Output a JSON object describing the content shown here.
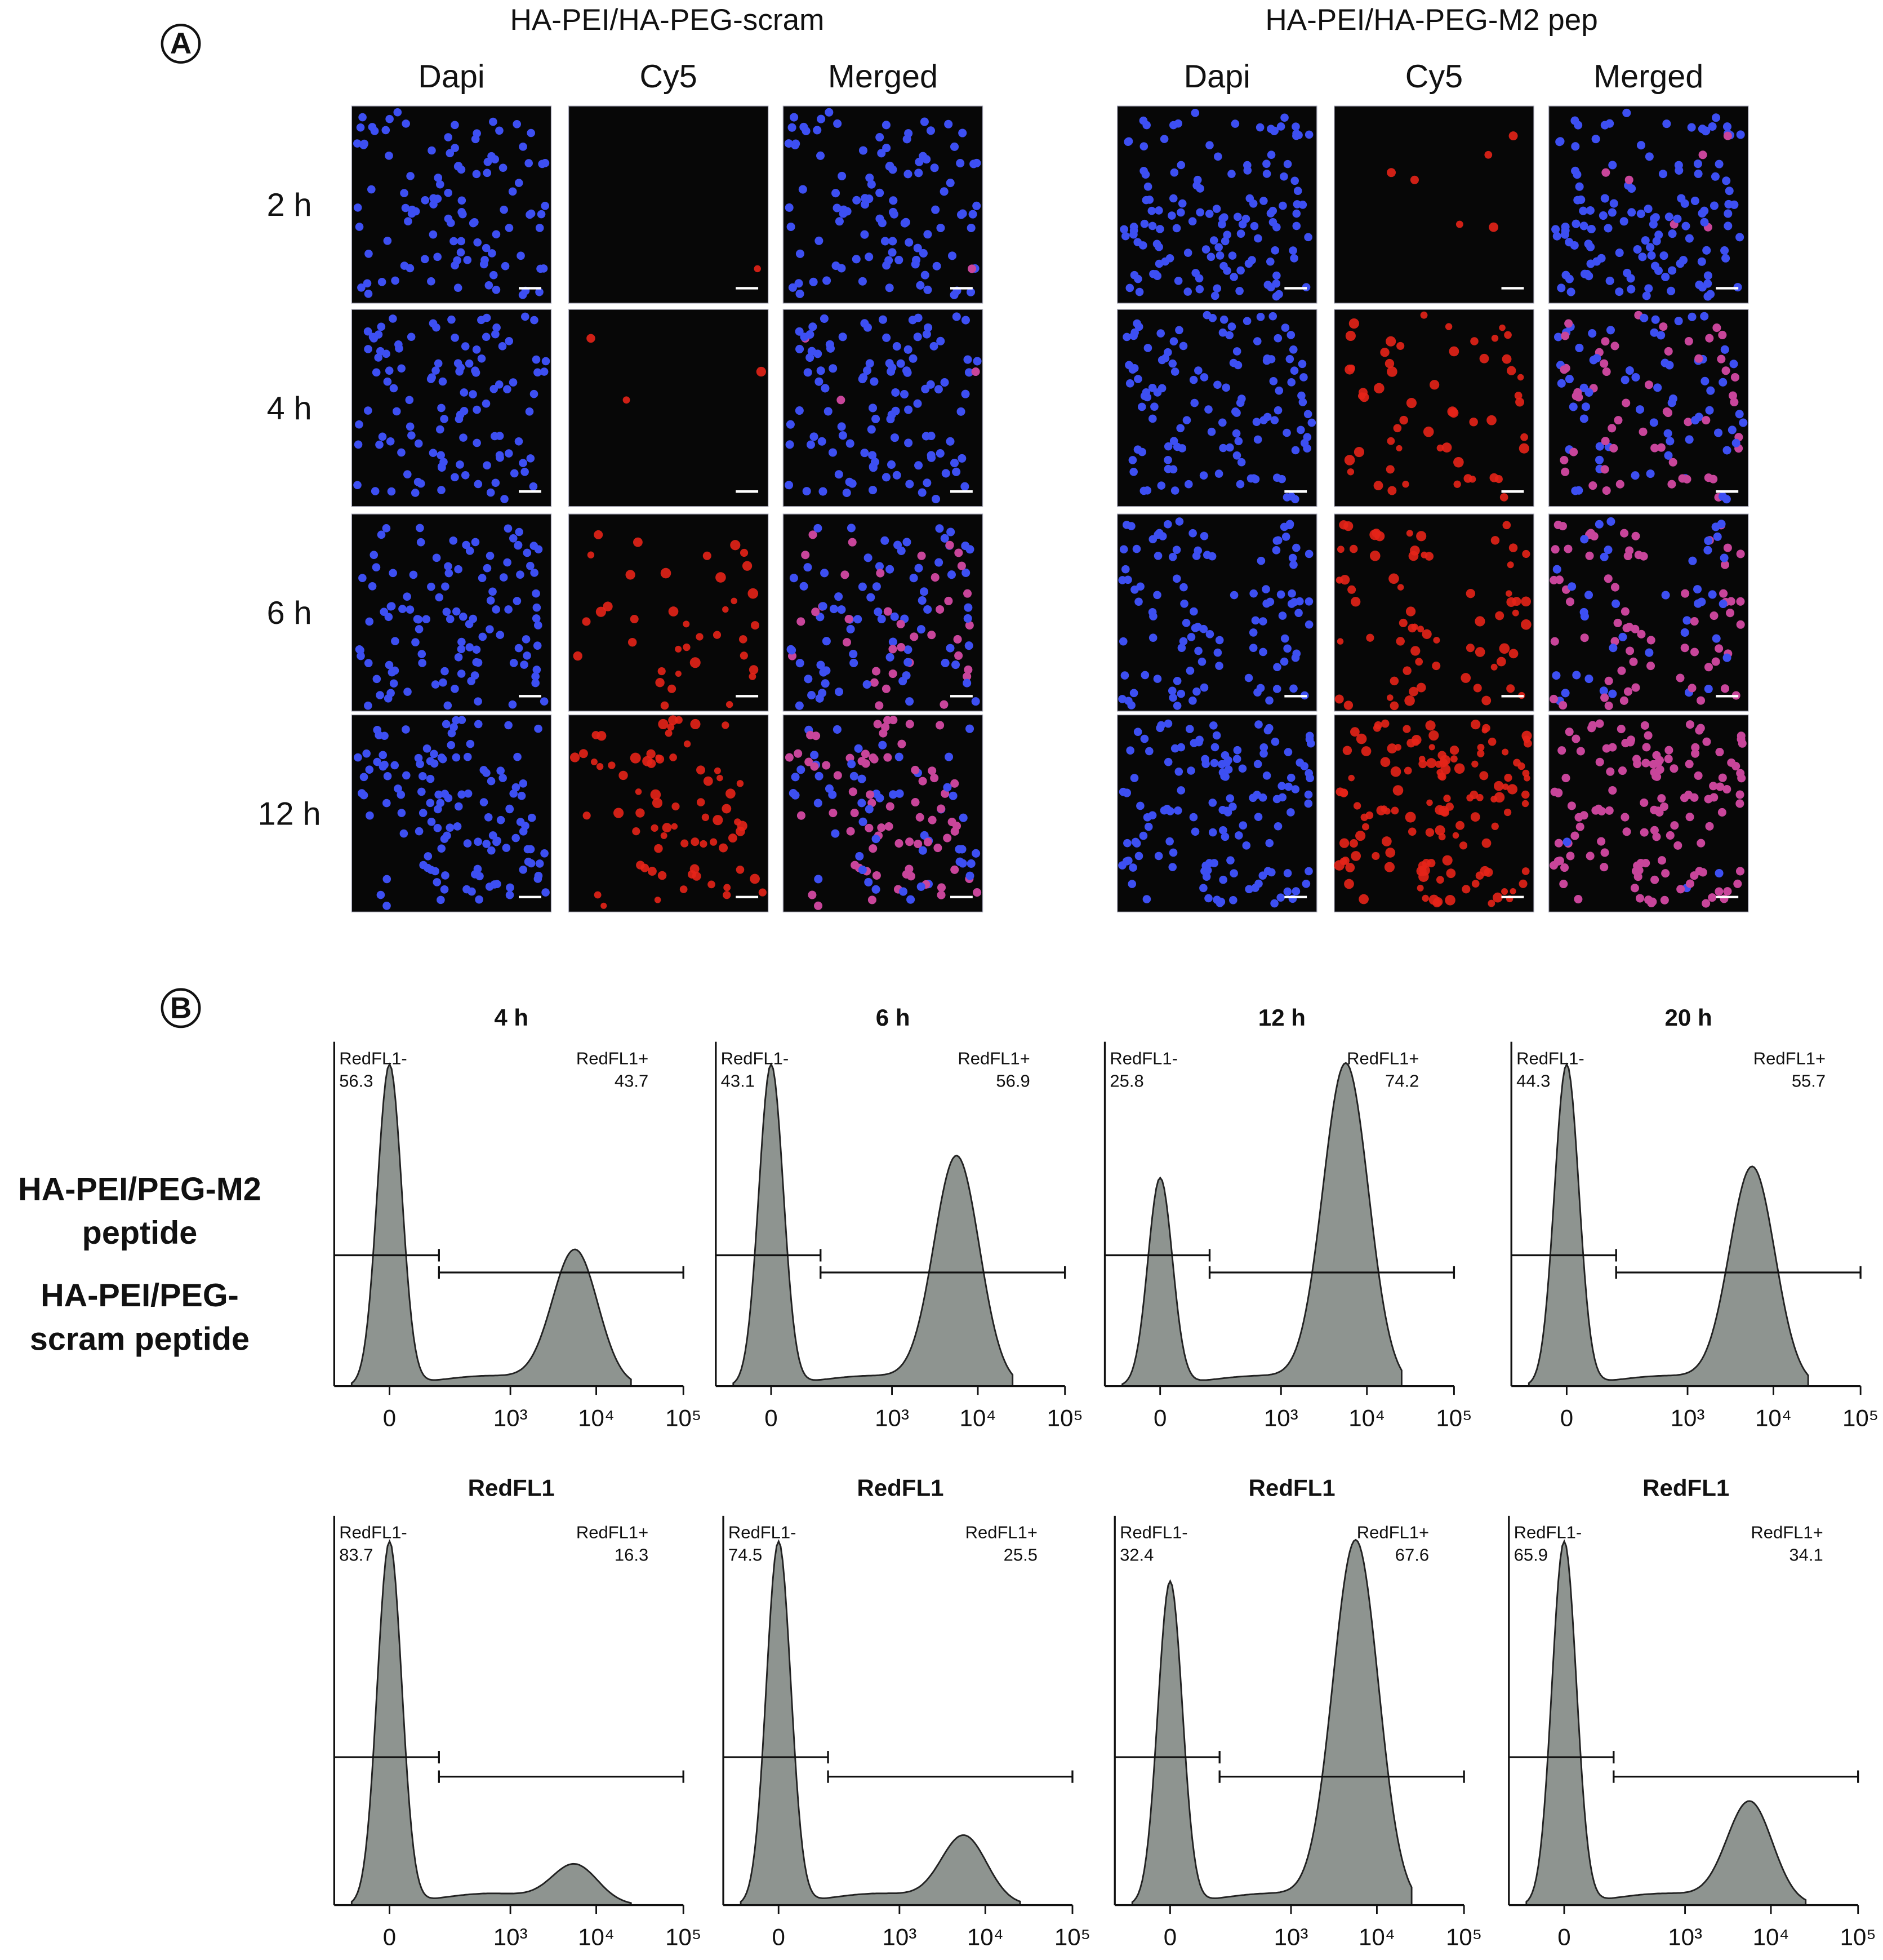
{
  "panel_a": {
    "label": "A",
    "groups": [
      {
        "title": "HA-PEI/HA-PEG-scram",
        "channels": [
          "Dapi",
          "Cy5",
          "Merged"
        ]
      },
      {
        "title": "HA-PEI/HA-PEG-M2 pep",
        "channels": [
          "Dapi",
          "Cy5",
          "Merged"
        ]
      }
    ],
    "timepoints": [
      "2 h",
      "4 h",
      "6 h",
      "12 h"
    ]
  },
  "panel_b": {
    "label": "B",
    "xlim": [
      -33,
      100000
    ],
    "xticks": [
      0,
      {
        "value": 1000,
        "label": "10³"
      },
      {
        "value": 10000,
        "label": "10⁴"
      },
      {
        "value": 100000,
        "label": "10⁵"
      }
    ],
    "fill_color": "#8e9490",
    "rows": [
      {
        "label": [
          "HA-PEI/PEG-M2",
          "peptide"
        ],
        "plots": [
          {
            "title": "4 h",
            "neg_label": "RedFL1-",
            "neg": 56.3,
            "pos_label": "RedFL1+",
            "pos": 43.7
          },
          {
            "title": "6 h",
            "neg_label": "RedFL1-",
            "neg": 43.1,
            "pos_label": "RedFL1+",
            "pos": 56.9
          },
          {
            "title": "12 h",
            "neg_label": "RedFL1-",
            "neg": 25.8,
            "pos_label": "RedFL1+",
            "pos": 74.2
          },
          {
            "title": "20 h",
            "neg_label": "RedFL1-",
            "neg": 44.3,
            "pos_label": "RedFL1+",
            "pos": 55.7
          }
        ]
      },
      {
        "label": [
          "HA-PEI/PEG-",
          "scram peptide"
        ],
        "plots": [
          {
            "title": "RedFL1",
            "neg_label": "RedFL1-",
            "neg": 83.7,
            "pos_label": "RedFL1+",
            "pos": 16.3
          },
          {
            "title": "RedFL1",
            "neg_label": "RedFL1-",
            "neg": 74.5,
            "pos_label": "RedFL1+",
            "pos": 25.5
          },
          {
            "title": "RedFL1",
            "neg_label": "RedFL1-",
            "neg": 32.4,
            "pos_label": "RedFL1+",
            "pos": 67.6
          },
          {
            "title": "RedFL1",
            "neg_label": "RedFL1-",
            "neg": 65.9,
            "pos_label": "RedFL1+",
            "pos": 34.1
          }
        ]
      }
    ]
  }
}
